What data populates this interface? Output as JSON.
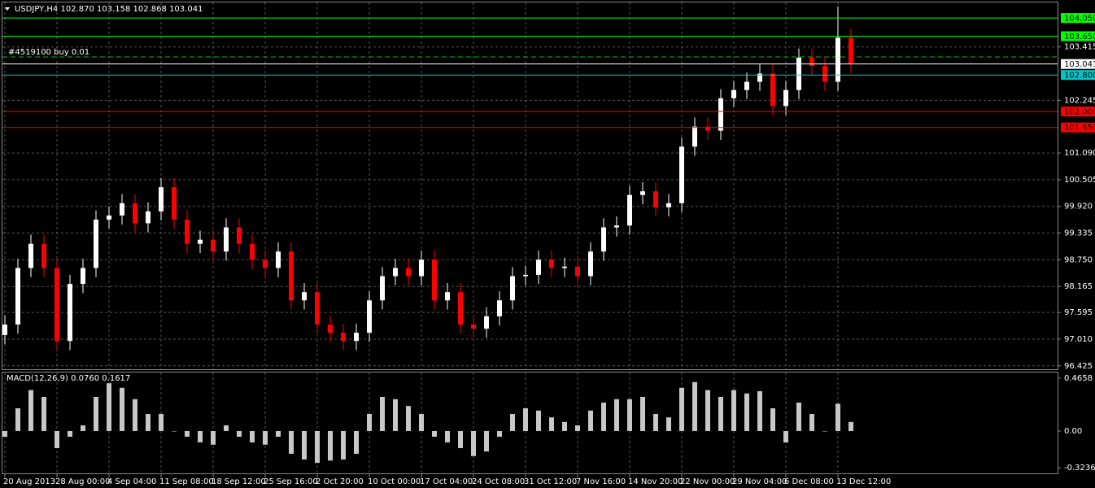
{
  "chart_data": [
    {
      "type": "candlestick",
      "title": "USDJPY,H4  102.870 103.158 102.868 103.041",
      "annotation": "#4519100 buy 0.01",
      "categories": [
        "20 Aug 2013",
        null,
        null,
        null,
        "28 Aug 00:00",
        null,
        null,
        null,
        "4 Sep 04:00",
        null,
        null,
        null,
        "11 Sep 08:00",
        null,
        null,
        null,
        "18 Sep 12:00",
        null,
        null,
        null,
        "25 Sep 16:00",
        null,
        null,
        null,
        "2 Oct 20:00",
        null,
        null,
        null,
        "10 Oct 00:00",
        null,
        null,
        null,
        "17 Oct 04:00",
        null,
        null,
        null,
        "24 Oct 08:00",
        null,
        null,
        null,
        "31 Oct 12:00",
        null,
        null,
        null,
        "7 Nov 16:00",
        null,
        null,
        null,
        "14 Nov 20:00",
        null,
        null,
        null,
        "22 Nov 00:00",
        null,
        null,
        null,
        "29 Nov 04:00",
        null,
        null,
        null,
        "6 Dec 08:00",
        null,
        null,
        null,
        "13 Dec 12:00",
        null
      ],
      "open": [
        97.1,
        97.33,
        98.57,
        99.1,
        98.57,
        96.97,
        98.22,
        98.57,
        99.63,
        99.72,
        99.99,
        99.55,
        99.81,
        100.34,
        99.63,
        99.1,
        99.19,
        98.93,
        99.46,
        99.1,
        98.75,
        98.57,
        98.93,
        97.86,
        98.04,
        97.33,
        97.15,
        96.97,
        97.15,
        97.86,
        98.39,
        98.57,
        98.39,
        98.75,
        97.86,
        98.04,
        97.33,
        97.24,
        97.51,
        97.86,
        98.39,
        98.42,
        98.75,
        98.57,
        98.6,
        98.39,
        98.93,
        99.46,
        99.5,
        100.17,
        100.25,
        99.9,
        99.99,
        101.23,
        101.67,
        101.58,
        102.29,
        102.47,
        102.65,
        102.83,
        102.12,
        102.47,
        103.18,
        103.0,
        102.65,
        103.62
      ],
      "high": [
        97.53,
        98.77,
        99.3,
        99.3,
        98.77,
        98.42,
        98.77,
        99.83,
        99.92,
        100.19,
        100.19,
        100.01,
        100.54,
        100.54,
        99.83,
        99.39,
        99.39,
        99.66,
        99.66,
        99.3,
        98.95,
        99.13,
        99.13,
        98.24,
        98.24,
        97.53,
        97.35,
        97.35,
        98.06,
        98.59,
        98.77,
        98.77,
        98.95,
        98.95,
        98.24,
        98.24,
        97.53,
        97.71,
        98.06,
        98.59,
        98.62,
        98.95,
        98.95,
        98.8,
        98.8,
        99.13,
        99.66,
        99.7,
        100.37,
        100.45,
        100.45,
        100.19,
        101.43,
        101.87,
        101.87,
        102.49,
        102.67,
        102.85,
        103.03,
        103.03,
        102.67,
        103.38,
        103.38,
        103.2,
        104.3,
        103.82
      ],
      "low": [
        96.9,
        97.13,
        98.37,
        98.37,
        96.77,
        96.77,
        98.02,
        98.37,
        99.43,
        99.52,
        99.35,
        99.35,
        99.61,
        99.43,
        98.9,
        98.9,
        98.73,
        98.73,
        98.9,
        98.55,
        98.37,
        98.37,
        97.66,
        97.66,
        97.13,
        96.95,
        96.77,
        96.77,
        96.95,
        97.66,
        98.19,
        98.19,
        98.19,
        97.66,
        97.66,
        97.13,
        97.04,
        97.04,
        97.31,
        97.66,
        98.19,
        98.22,
        98.37,
        98.37,
        98.19,
        98.19,
        98.73,
        99.26,
        99.3,
        99.97,
        99.7,
        99.7,
        99.79,
        101.03,
        101.38,
        101.38,
        102.09,
        102.27,
        102.45,
        101.92,
        101.92,
        102.27,
        102.8,
        102.45,
        102.45,
        102.84
      ],
      "close": [
        97.33,
        98.57,
        99.1,
        98.57,
        96.97,
        98.22,
        98.57,
        99.63,
        99.72,
        99.99,
        99.55,
        99.81,
        100.34,
        99.63,
        99.1,
        99.19,
        98.93,
        99.46,
        99.1,
        98.75,
        98.57,
        98.93,
        97.86,
        98.04,
        97.33,
        97.15,
        96.97,
        97.15,
        97.86,
        98.39,
        98.57,
        98.39,
        98.75,
        97.86,
        98.04,
        97.33,
        97.24,
        97.51,
        97.86,
        98.39,
        98.42,
        98.75,
        98.57,
        98.6,
        98.39,
        98.93,
        99.46,
        99.5,
        100.17,
        100.25,
        99.9,
        99.99,
        101.23,
        101.67,
        101.58,
        102.29,
        102.47,
        102.65,
        102.83,
        102.12,
        102.47,
        103.18,
        103.0,
        102.65,
        103.62,
        103.04
      ],
      "up_color": "#ffffff",
      "down_color": "#ff0000",
      "ylim": [
        96.35,
        104.39
      ],
      "yticks": [
        {
          "value": 103.415,
          "label": "103.415"
        },
        {
          "value": 102.245,
          "label": "102.245"
        },
        {
          "value": 101.09,
          "label": "101.090"
        },
        100.505,
        {
          "value": 99.92,
          "label": "99.920"
        },
        99.335,
        {
          "value": 98.75,
          "label": "98.750"
        },
        98.165,
        97.595,
        {
          "value": 97.01,
          "label": "97.010"
        },
        96.425
      ],
      "levels": [
        {
          "value": 104.05,
          "label": "104.050",
          "color": "#00ff00"
        },
        {
          "value": 103.65,
          "label": "103.650",
          "color": "#00ff00"
        },
        {
          "value": 103.041,
          "label": "103.041",
          "color": "#ffffff"
        },
        {
          "value": 102.8,
          "label": "102.800",
          "color": "#00c8c8"
        },
        {
          "value": 102,
          "label": "102.000",
          "color": "#ff0000"
        },
        {
          "value": 101.65,
          "label": "101.650",
          "color": "#ff0000"
        }
      ],
      "grid": true
    },
    {
      "type": "bar",
      "title": "MACD(12,26,9) 0.0760 0.1617",
      "values": [
        -0.05,
        0.2,
        0.36,
        0.3,
        -0.15,
        -0.05,
        0.05,
        0.3,
        0.42,
        0.38,
        0.28,
        0.15,
        0.15,
        0.0,
        -0.05,
        -0.1,
        -0.12,
        0.05,
        -0.05,
        -0.1,
        -0.12,
        -0.05,
        -0.2,
        -0.25,
        -0.28,
        -0.26,
        -0.25,
        -0.2,
        0.15,
        0.3,
        0.28,
        0.22,
        0.15,
        -0.05,
        -0.1,
        -0.15,
        -0.22,
        -0.18,
        -0.05,
        0.15,
        0.2,
        0.18,
        0.12,
        0.08,
        0.05,
        0.18,
        0.25,
        0.28,
        0.28,
        0.3,
        0.15,
        0.12,
        0.38,
        0.43,
        0.36,
        0.3,
        0.36,
        0.33,
        0.35,
        0.2,
        -0.1,
        0.25,
        0.15,
        0.0,
        0.24,
        0.08
      ],
      "color": "#c8c8c8",
      "ylim": [
        -0.372,
        0.5145
      ],
      "yticks": [
        0.4658,
        {
          "value": 0,
          "label": "0.00"
        },
        -0.3236
      ]
    }
  ]
}
